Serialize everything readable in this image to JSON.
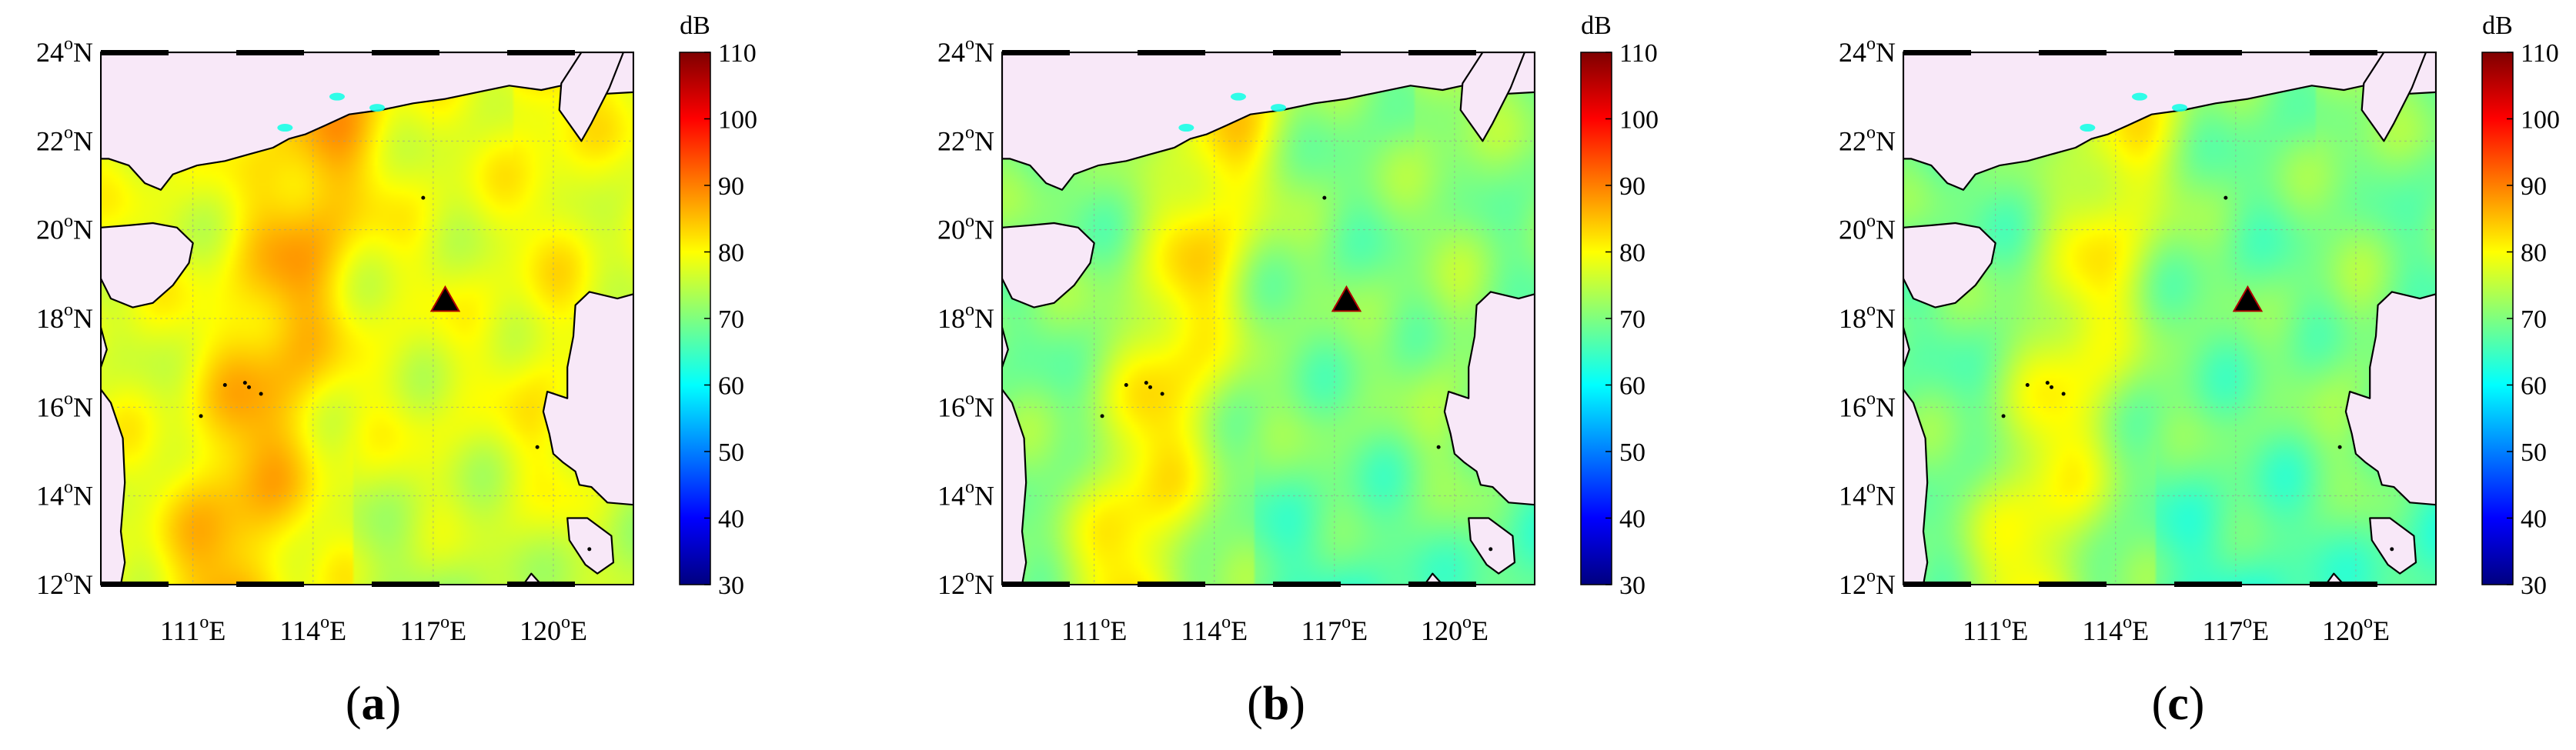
{
  "chart_data": [
    {
      "type": "heatmap",
      "panel_label": "(a)",
      "colorbar_unit": "dB",
      "color_range": [
        30,
        110
      ],
      "colorbar_ticks": [
        110,
        100,
        90,
        80,
        70,
        60,
        50,
        40,
        30
      ],
      "x_range_deg": [
        108.7,
        122.0
      ],
      "y_range_deg": [
        12,
        24
      ],
      "x_ticks": [
        111,
        114,
        117,
        120
      ],
      "x_tick_labels": [
        "111°E",
        "114°E",
        "117°E",
        "120°E"
      ],
      "y_ticks": [
        24,
        22,
        20,
        18,
        16,
        14,
        12
      ],
      "y_tick_labels": [
        "24°N",
        "22°N",
        "20°N",
        "18°N",
        "16°N",
        "14°N",
        "12°N"
      ],
      "source_marker": {
        "lon": 117.3,
        "lat": 18.4,
        "shape": "triangle",
        "color": "#000000"
      },
      "ridge_level_db": 86,
      "background_level_db": 78,
      "grid": true
    },
    {
      "type": "heatmap",
      "panel_label": "(b)",
      "colorbar_unit": "dB",
      "color_range": [
        30,
        110
      ],
      "colorbar_ticks": [
        110,
        100,
        90,
        80,
        70,
        60,
        50,
        40,
        30
      ],
      "x_range_deg": [
        108.7,
        122.0
      ],
      "y_range_deg": [
        12,
        24
      ],
      "x_ticks": [
        111,
        114,
        117,
        120
      ],
      "x_tick_labels": [
        "111°E",
        "114°E",
        "117°E",
        "120°E"
      ],
      "y_ticks": [
        24,
        22,
        20,
        18,
        16,
        14,
        12
      ],
      "y_tick_labels": [
        "24°N",
        "22°N",
        "20°N",
        "18°N",
        "16°N",
        "14°N",
        "12°N"
      ],
      "source_marker": {
        "lon": 117.3,
        "lat": 18.4,
        "shape": "triangle",
        "color": "#000000"
      },
      "ridge_level_db": 82,
      "background_level_db": 70,
      "grid": true
    },
    {
      "type": "heatmap",
      "panel_label": "(c)",
      "colorbar_unit": "dB",
      "color_range": [
        30,
        110
      ],
      "colorbar_ticks": [
        110,
        100,
        90,
        80,
        70,
        60,
        50,
        40,
        30
      ],
      "x_range_deg": [
        108.7,
        122.0
      ],
      "y_range_deg": [
        12,
        24
      ],
      "x_ticks": [
        111,
        114,
        117,
        120
      ],
      "x_tick_labels": [
        "111°E",
        "114°E",
        "117°E",
        "120°E"
      ],
      "y_ticks": [
        24,
        22,
        20,
        18,
        16,
        14,
        12
      ],
      "y_tick_labels": [
        "24°N",
        "22°N",
        "20°N",
        "18°N",
        "16°N",
        "14°N",
        "12°N"
      ],
      "source_marker": {
        "lon": 117.3,
        "lat": 18.4,
        "shape": "triangle",
        "color": "#000000"
      },
      "ridge_level_db": 80,
      "background_level_db": 69,
      "grid": true
    }
  ],
  "colors": {
    "land": "#F8E8F8",
    "coastline": "#000000",
    "jet_stops": [
      "#00007F",
      "#0000FF",
      "#007FFF",
      "#00FFFF",
      "#7FFF7F",
      "#FFFF00",
      "#FF7F00",
      "#FF0000",
      "#7F0000"
    ]
  }
}
